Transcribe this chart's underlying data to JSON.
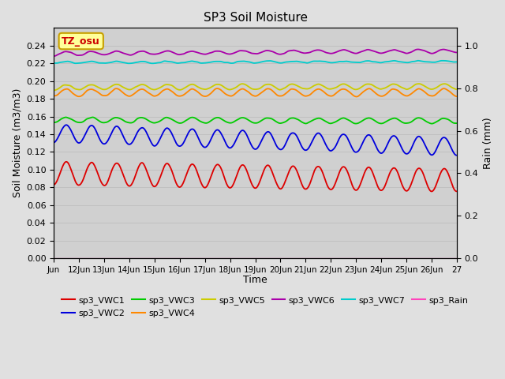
{
  "title": "SP3 Soil Moisture",
  "xlabel": "Time",
  "ylabel_left": "Soil Moisture (m3/m3)",
  "ylabel_right": "Rain (mm)",
  "xlim_days": [
    0,
    16
  ],
  "ylim_left": [
    0.0,
    0.26
  ],
  "ylim_right": [
    0.0,
    1.0833
  ],
  "x_tick_labels": [
    "Jun",
    "12Jun",
    "13Jun",
    "14Jun",
    "15Jun",
    "16Jun",
    "17Jun",
    "18Jun",
    "19Jun",
    "20Jun",
    "21Jun",
    "22Jun",
    "23Jun",
    "24Jun",
    "25Jun",
    "26Jun",
    "27"
  ],
  "background_color": "#e0e0e0",
  "plot_bg_color": "#d0d0d0",
  "watermark_text": "TZ_osu",
  "watermark_bg": "#ffff99",
  "watermark_border": "#c8a000",
  "watermark_text_color": "#cc0000",
  "series_order": [
    "sp3_VWC1",
    "sp3_VWC2",
    "sp3_VWC3",
    "sp3_VWC4",
    "sp3_VWC5",
    "sp3_VWC6",
    "sp3_VWC7",
    "sp3_Rain"
  ],
  "series": {
    "sp3_VWC1": {
      "color": "#dd0000",
      "base": 0.096,
      "amp": 0.013,
      "trend": -0.008,
      "phase": -1.5708
    },
    "sp3_VWC2": {
      "color": "#0000dd",
      "base": 0.141,
      "amp": 0.01,
      "trend": -0.015,
      "phase": -1.5708
    },
    "sp3_VWC3": {
      "color": "#00cc00",
      "base": 0.156,
      "amp": 0.003,
      "trend": -0.001,
      "phase": -1.5708
    },
    "sp3_VWC4": {
      "color": "#ff8800",
      "base": 0.187,
      "amp": 0.004,
      "trend": 0.0,
      "phase": -1.5708
    },
    "sp3_VWC5": {
      "color": "#cccc00",
      "base": 0.193,
      "amp": 0.003,
      "trend": 0.001,
      "phase": -1.5708
    },
    "sp3_VWC6": {
      "color": "#aa00aa",
      "base": 0.231,
      "amp": 0.002,
      "trend": 0.003,
      "phase": -1.5708
    },
    "sp3_VWC7": {
      "color": "#00cccc",
      "base": 0.221,
      "amp": 0.001,
      "trend": 0.001,
      "phase": -1.5708
    },
    "sp3_Rain": {
      "color": "#ff44bb",
      "base": 0.0,
      "amp": 0.0,
      "trend": 0.0,
      "phase": 0.0
    }
  },
  "legend_entries": [
    "sp3_VWC1",
    "sp3_VWC2",
    "sp3_VWC3",
    "sp3_VWC4",
    "sp3_VWC5",
    "sp3_VWC6",
    "sp3_VWC7",
    "sp3_Rain"
  ],
  "legend_colors": [
    "#dd0000",
    "#0000dd",
    "#00cc00",
    "#ff8800",
    "#cccc00",
    "#aa00aa",
    "#00cccc",
    "#ff44bb"
  ],
  "yticks_left": [
    0.0,
    0.02,
    0.04,
    0.06,
    0.08,
    0.1,
    0.12,
    0.14,
    0.16,
    0.18,
    0.2,
    0.22,
    0.24
  ],
  "yticks_right": [
    0.0,
    0.2,
    0.4,
    0.6,
    0.8,
    1.0
  ],
  "grid_color": "#c0c0c0",
  "n_points": 768
}
